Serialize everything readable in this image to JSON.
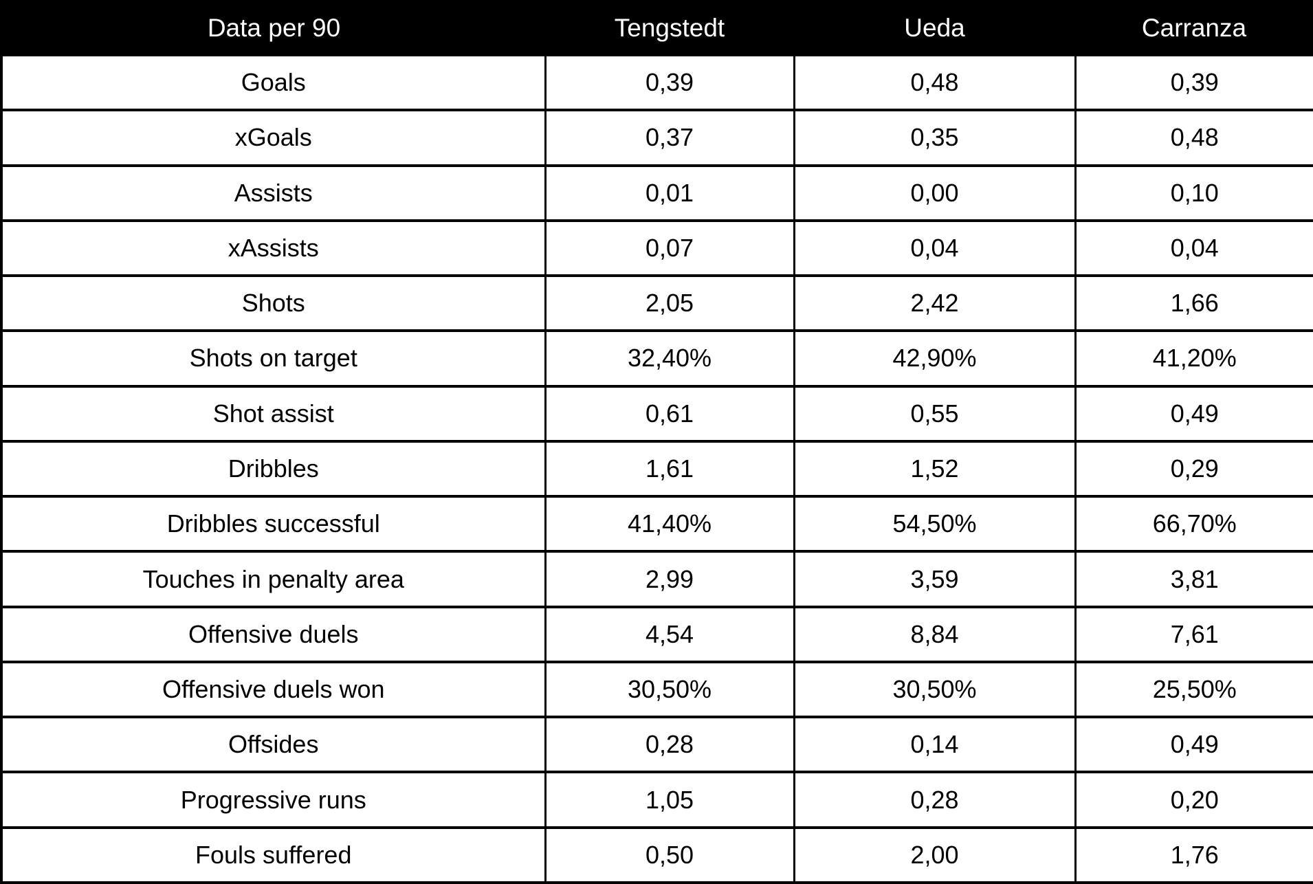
{
  "chart_data": {
    "type": "table",
    "title": "Data per 90",
    "columns": [
      "Data per 90",
      "Tengstedt",
      "Ueda",
      "Carranza"
    ],
    "rows": [
      {
        "label": "Goals",
        "values": [
          "0,39",
          "0,48",
          "0,39"
        ]
      },
      {
        "label": "xGoals",
        "values": [
          "0,37",
          "0,35",
          "0,48"
        ]
      },
      {
        "label": "Assists",
        "values": [
          "0,01",
          "0,00",
          "0,10"
        ]
      },
      {
        "label": "xAssists",
        "values": [
          "0,07",
          "0,04",
          "0,04"
        ]
      },
      {
        "label": "Shots",
        "values": [
          "2,05",
          "2,42",
          "1,66"
        ]
      },
      {
        "label": "Shots on target",
        "values": [
          "32,40%",
          "42,90%",
          "41,20%"
        ]
      },
      {
        "label": "Shot assist",
        "values": [
          "0,61",
          "0,55",
          "0,49"
        ]
      },
      {
        "label": "Dribbles",
        "values": [
          "1,61",
          "1,52",
          "0,29"
        ]
      },
      {
        "label": "Dribbles successful",
        "values": [
          "41,40%",
          "54,50%",
          "66,70%"
        ]
      },
      {
        "label": "Touches in penalty area",
        "values": [
          "2,99",
          "3,59",
          "3,81"
        ]
      },
      {
        "label": "Offensive duels",
        "values": [
          "4,54",
          "8,84",
          "7,61"
        ]
      },
      {
        "label": "Offensive duels won",
        "values": [
          "30,50%",
          "30,50%",
          "25,50%"
        ]
      },
      {
        "label": "Offsides",
        "values": [
          "0,28",
          "0,14",
          "0,49"
        ]
      },
      {
        "label": "Progressive runs",
        "values": [
          "1,05",
          "0,28",
          "0,20"
        ]
      },
      {
        "label": "Fouls suffered",
        "values": [
          "0,50",
          "2,00",
          "1,76"
        ]
      }
    ],
    "layout": {
      "legend": "none",
      "grid": "full-borders"
    },
    "colors": {
      "header_bg": "#000000",
      "header_text": "#ffffff",
      "body_bg": "#ffffff",
      "body_text": "#000000",
      "border": "#000000"
    }
  }
}
